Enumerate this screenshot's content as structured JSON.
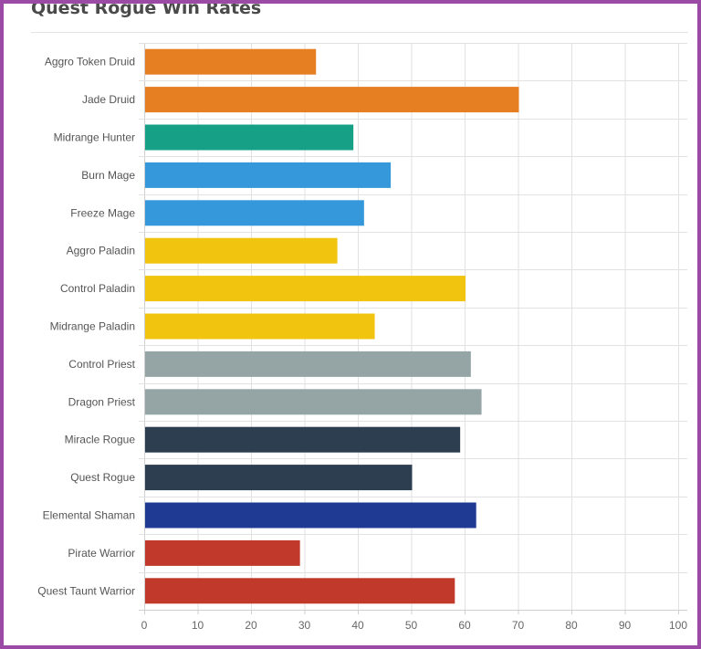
{
  "chart_data": {
    "type": "bar",
    "orientation": "horizontal",
    "title": "Quest Rogue Win Rates",
    "xlabel": "",
    "ylabel": "",
    "xlim": [
      0,
      100
    ],
    "ticks": [
      0,
      10,
      20,
      30,
      40,
      50,
      60,
      70,
      80,
      90,
      100
    ],
    "grid": true,
    "legend": "none",
    "categories": [
      "Aggro Token Druid",
      "Jade Druid",
      "Midrange Hunter",
      "Burn Mage",
      "Freeze Mage",
      "Aggro Paladin",
      "Control Paladin",
      "Midrange Paladin",
      "Control Priest",
      "Dragon Priest",
      "Miracle Rogue",
      "Quest Rogue",
      "Elemental Shaman",
      "Pirate Warrior",
      "Quest Taunt Warrior"
    ],
    "values": [
      32,
      70,
      39,
      46,
      41,
      36,
      60,
      43,
      61,
      63,
      59,
      50,
      62,
      29,
      58
    ],
    "colors": [
      "#e67e22",
      "#e67e22",
      "#16a085",
      "#3498db",
      "#3498db",
      "#f1c40f",
      "#f1c40f",
      "#f1c40f",
      "#95a5a6",
      "#95a5a6",
      "#2c3e50",
      "#2c3e50",
      "#1f3a93",
      "#c0392b",
      "#c0392b"
    ]
  }
}
